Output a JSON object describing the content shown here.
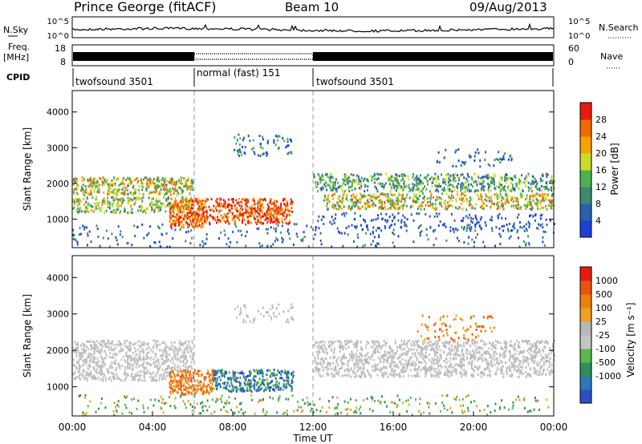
{
  "header": {
    "title": "Prince George (fitACF)",
    "beam": "Beam 10",
    "date": "09/Aug/2013"
  },
  "colors": {
    "power_scale": [
      "#1f3fd8",
      "#2a5fb0",
      "#3d8a6e",
      "#4caf50",
      "#c9dc2c",
      "#f5a300",
      "#ef6a00",
      "#e51b0d"
    ],
    "velocity_scale": [
      "#2b4fc9",
      "#2f79b5",
      "#2f8f5c",
      "#58b84a",
      "#c4c4c4",
      "#b8b8b8",
      "#f0a020",
      "#ee7f0f",
      "#e85410",
      "#e51b0d"
    ]
  },
  "chart_data": [
    {
      "type": "line",
      "name": "nsky-panel",
      "left_label": "N.Sky",
      "right_label": "N.Search",
      "left_ticks": [
        "10^5",
        "10^0"
      ],
      "right_ticks": [
        "10^5",
        "10^0"
      ],
      "x": [
        "00:00",
        "04:00",
        "08:00",
        "12:00",
        "16:00",
        "20:00",
        "00:00"
      ]
    },
    {
      "type": "bar",
      "name": "freq-nave-panel",
      "left_label_line1": "Freq.",
      "left_label_line2": "[MHz]",
      "right_label": "Nave",
      "left_ticks": [
        "18",
        "8"
      ],
      "right_ticks": [
        "60",
        "0"
      ]
    },
    {
      "type": "table",
      "name": "cpid-panel",
      "label": "CPID",
      "segments": [
        {
          "label": "twofsound 3501",
          "start_hour": 0,
          "end_hour": 6
        },
        {
          "label": "normal (fast) 151",
          "start_hour": 6,
          "end_hour": 12
        },
        {
          "label": "twofsound 3501",
          "start_hour": 12,
          "end_hour": 24
        }
      ]
    },
    {
      "type": "heatmap",
      "name": "power-panel",
      "ylabel": "Slant Range [km]",
      "yticks": [
        1000,
        2000,
        3000,
        4000
      ],
      "ylim": [
        200,
        4600
      ],
      "xlim_hours": [
        0,
        24
      ],
      "colorbar_label": "Power [dB]",
      "colorbar_ticks": [
        "4",
        "8",
        "12",
        "16",
        "20",
        "24",
        "28"
      ]
    },
    {
      "type": "heatmap",
      "name": "velocity-panel",
      "ylabel": "Slant Range [km]",
      "yticks": [
        1000,
        2000,
        3000,
        4000
      ],
      "ylim": [
        200,
        4600
      ],
      "xlim_hours": [
        0,
        24
      ],
      "colorbar_label": "Velocity [m s⁻¹]",
      "colorbar_ticks": [
        "1000",
        "500",
        "100",
        "25",
        "-25",
        "-100",
        "-500",
        "-1000"
      ]
    }
  ],
  "xaxis": {
    "ticks": [
      "00:00",
      "04:00",
      "08:00",
      "12:00",
      "16:00",
      "20:00",
      "00:00"
    ],
    "label": "Time UT"
  }
}
